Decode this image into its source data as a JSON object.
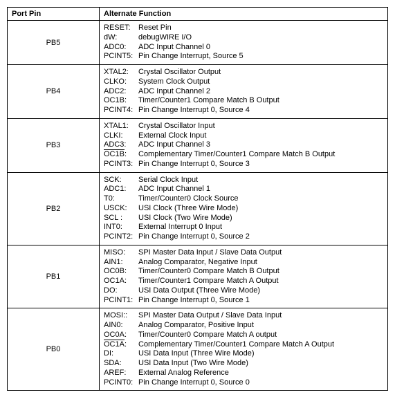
{
  "headers": {
    "pin": "Port Pin",
    "func": "Alternate Function"
  },
  "rows": [
    {
      "pin": "PB5",
      "lines": [
        {
          "sig": "RESET:",
          "overline": false,
          "desc": "Reset Pin"
        },
        {
          "sig": "dW:",
          "overline": false,
          "desc": "debugWIRE I/O"
        },
        {
          "sig": "ADC0:",
          "overline": false,
          "desc": "ADC Input Channel 0"
        },
        {
          "sig": "PCINT5:",
          "overline": false,
          "desc": "Pin Change Interrupt, Source 5"
        }
      ]
    },
    {
      "pin": "PB4",
      "lines": [
        {
          "sig": "XTAL2:",
          "overline": false,
          "desc": "Crystal Oscillator Output"
        },
        {
          "sig": "CLKO:",
          "overline": false,
          "desc": "System Clock Output"
        },
        {
          "sig": "ADC2:",
          "overline": false,
          "desc": "ADC Input Channel 2"
        },
        {
          "sig": "OC1B:",
          "overline": false,
          "desc": "Timer/Counter1 Compare Match B Output"
        },
        {
          "sig": "PCINT4:",
          "overline": false,
          "desc": "Pin Change Interrupt 0, Source 4"
        }
      ]
    },
    {
      "pin": "PB3",
      "lines": [
        {
          "sig": "XTAL1:",
          "overline": false,
          "desc": "Crystal Oscillator Input"
        },
        {
          "sig": "CLKI:",
          "overline": false,
          "desc": "External Clock Input"
        },
        {
          "sig": "ADC3:",
          "overline": false,
          "desc": "ADC Input Channel 3"
        },
        {
          "sig": "OC1B:",
          "overline": true,
          "desc": "Complementary Timer/Counter1 Compare Match B Output"
        },
        {
          "sig": "PCINT3:",
          "overline": false,
          "desc": "Pin Change Interrupt 0, Source 3"
        }
      ]
    },
    {
      "pin": "PB2",
      "lines": [
        {
          "sig": "SCK:",
          "overline": false,
          "desc": "Serial Clock Input"
        },
        {
          "sig": "ADC1:",
          "overline": false,
          "desc": "ADC Input Channel 1"
        },
        {
          "sig": "T0:",
          "overline": false,
          "desc": "Timer/Counter0 Clock Source"
        },
        {
          "sig": "USCK:",
          "overline": false,
          "desc": "USI Clock (Three Wire Mode)"
        },
        {
          "sig": "SCL :",
          "overline": false,
          "desc": "USI Clock (Two Wire Mode)"
        },
        {
          "sig": "INT0:",
          "overline": false,
          "desc": "External Interrupt 0 Input"
        },
        {
          "sig": "PCINT2:",
          "overline": false,
          "desc": "Pin Change Interrupt 0, Source 2"
        }
      ]
    },
    {
      "pin": "PB1",
      "lines": [
        {
          "sig": "MISO:",
          "overline": false,
          "desc": "SPI Master Data Input / Slave Data Output"
        },
        {
          "sig": "AIN1:",
          "overline": false,
          "desc": "Analog Comparator, Negative Input"
        },
        {
          "sig": "OC0B:",
          "overline": false,
          "desc": "Timer/Counter0 Compare Match B Output"
        },
        {
          "sig": "OC1A:",
          "overline": false,
          "desc": "Timer/Counter1 Compare Match A Output"
        },
        {
          "sig": "DO:",
          "overline": false,
          "desc": "USI Data Output (Three Wire Mode)"
        },
        {
          "sig": "PCINT1:",
          "overline": false,
          "desc": "Pin Change Interrupt 0, Source 1"
        }
      ]
    },
    {
      "pin": "PB0",
      "lines": [
        {
          "sig": "MOSI::",
          "overline": false,
          "desc": "SPI Master Data Output / Slave Data Input"
        },
        {
          "sig": "AIN0:",
          "overline": false,
          "desc": "Analog Comparator, Positive Input"
        },
        {
          "sig": "OC0A:",
          "overline": false,
          "desc": "Timer/Counter0 Compare Match A output"
        },
        {
          "sig": "OC1A:",
          "overline": true,
          "desc": "Complementary Timer/Counter1 Compare Match A Output"
        },
        {
          "sig": "DI:",
          "overline": false,
          "desc": "USI Data Input (Three Wire Mode)"
        },
        {
          "sig": "SDA:",
          "overline": false,
          "desc": "USI Data Input (Two Wire Mode)"
        },
        {
          "sig": "AREF:",
          "overline": false,
          "desc": "External Analog Reference"
        },
        {
          "sig": "PCINT0:",
          "overline": false,
          "desc": "Pin Change Interrupt 0, Source 0"
        }
      ]
    }
  ]
}
